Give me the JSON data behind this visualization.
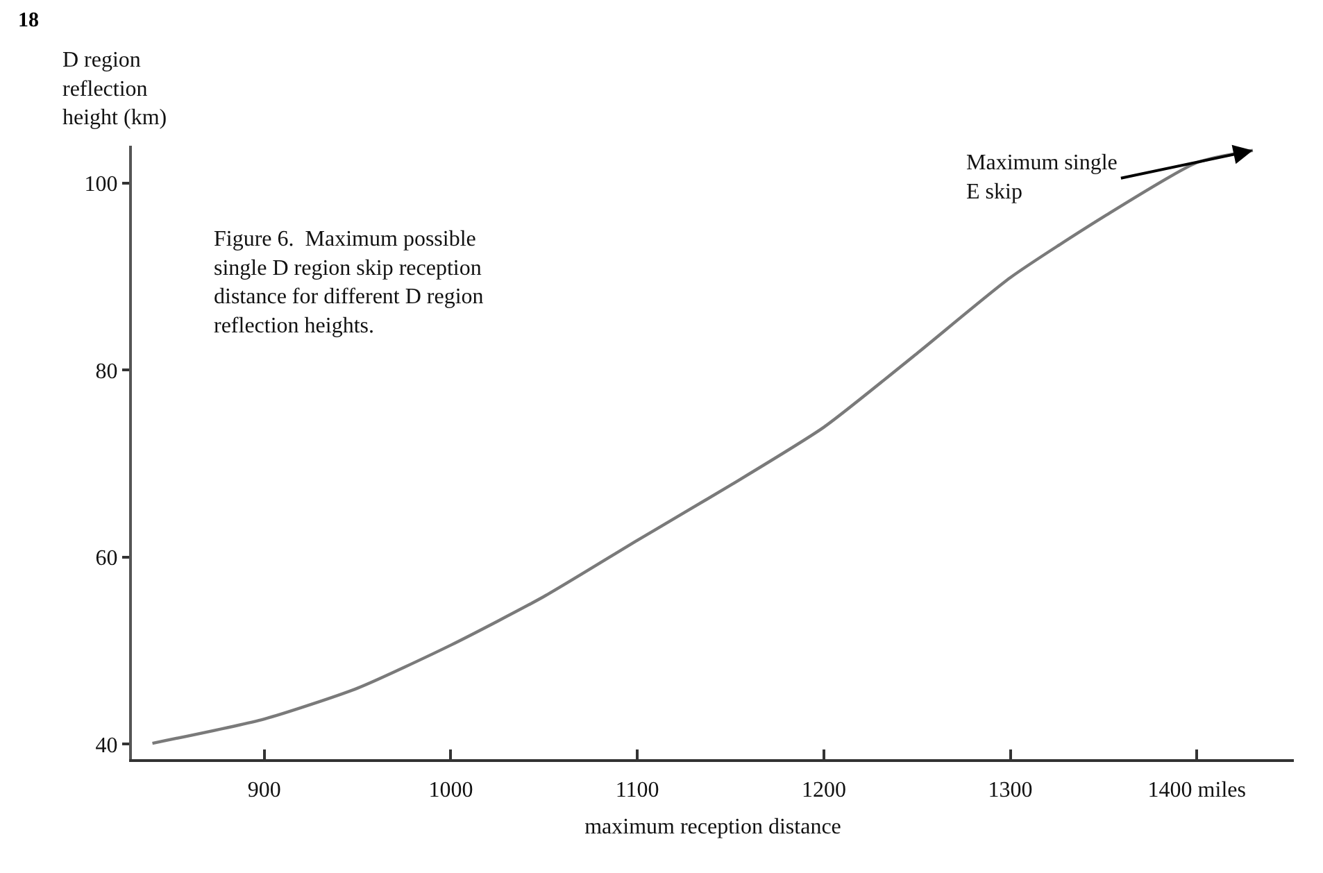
{
  "chart_data": {
    "type": "line",
    "xlabel": "maximum reception distance",
    "ylabel": "D region reflection height (km)",
    "x": [
      840,
      900,
      950,
      1000,
      1050,
      1100,
      1150,
      1200,
      1250,
      1300,
      1350,
      1400,
      1430
    ],
    "series": [
      {
        "color": "#7a7a7a",
        "values": [
          40.1,
          42.7,
          46.0,
          50.6,
          55.8,
          61.8,
          67.7,
          73.9,
          81.8,
          89.9,
          96.4,
          102.2,
          103.5
        ]
      }
    ],
    "xlim": [
      829,
      1452
    ],
    "ylim": [
      38.4,
      104
    ],
    "xticks": [
      900,
      1000,
      1100,
      1200,
      1300,
      {
        "value": 1400,
        "label": "1400 miles"
      }
    ],
    "yticks": [
      40,
      60,
      80,
      100
    ],
    "grid": false,
    "marker": "none",
    "line_style": "solid",
    "annotations": [
      "18",
      "Figure 6.  Maximum possible single D region skip reception distance for different D region reflection heights.",
      {
        "text": "Maximum single E skip",
        "x": 1430,
        "y": 103.5
      }
    ]
  }
}
